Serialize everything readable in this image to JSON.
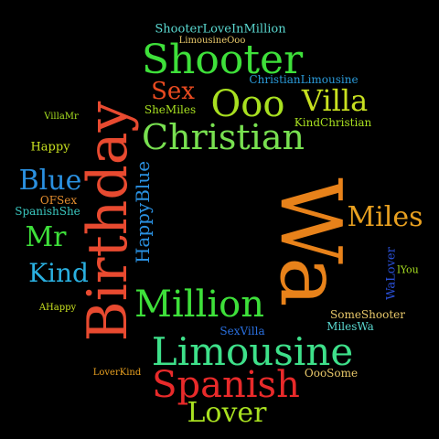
{
  "words": [
    {
      "text": "ShooterLoveInMillion",
      "color": "#5ad8d0"
    },
    {
      "text": "LimousineOoo",
      "color": "#e8c86a"
    },
    {
      "text": "Shooter",
      "color": "#3ee03a"
    },
    {
      "text": "Sex",
      "color": "#e84a20"
    },
    {
      "text": "ChristianLimousine",
      "color": "#2a9ad8"
    },
    {
      "text": "Ooo",
      "color": "#a8e020"
    },
    {
      "text": "Villa",
      "color": "#c8e020"
    },
    {
      "text": "SheMiles",
      "color": "#a8e020"
    },
    {
      "text": "KindChristian",
      "color": "#a8e020"
    },
    {
      "text": "VillaMr",
      "color": "#a8e020"
    },
    {
      "text": "Christian",
      "color": "#78e050"
    },
    {
      "text": "Birthday",
      "color": "#e84a30"
    },
    {
      "text": "Happy",
      "color": "#c8e020"
    },
    {
      "text": "Blue",
      "color": "#2a90e0"
    },
    {
      "text": "OFSex",
      "color": "#e89030"
    },
    {
      "text": "SpanishShe",
      "color": "#3ac8c0"
    },
    {
      "text": "HappyBlue",
      "color": "#2a90e0"
    },
    {
      "text": "Wa",
      "color": "#e8821a"
    },
    {
      "text": "Miles",
      "color": "#e8a020"
    },
    {
      "text": "Mr",
      "color": "#3ee03a"
    },
    {
      "text": "Kind",
      "color": "#2ab0e0"
    },
    {
      "text": "WaLover",
      "color": "#2a50d8"
    },
    {
      "text": "lYou",
      "color": "#a8e020"
    },
    {
      "text": "AHappy",
      "color": "#c8e020"
    },
    {
      "text": "Million",
      "color": "#3ee03a"
    },
    {
      "text": "SomeShooter",
      "color": "#e8c86a"
    },
    {
      "text": "SexVilla",
      "color": "#2a70e0"
    },
    {
      "text": "MilesWa",
      "color": "#5ad8d0"
    },
    {
      "text": "Limousine",
      "color": "#3ee08a"
    },
    {
      "text": "LoverKind",
      "color": "#e8a020"
    },
    {
      "text": "OooSome",
      "color": "#e8c86a"
    },
    {
      "text": "Spanish",
      "color": "#e82a2a"
    },
    {
      "text": "Lover",
      "color": "#a8e020"
    }
  ]
}
